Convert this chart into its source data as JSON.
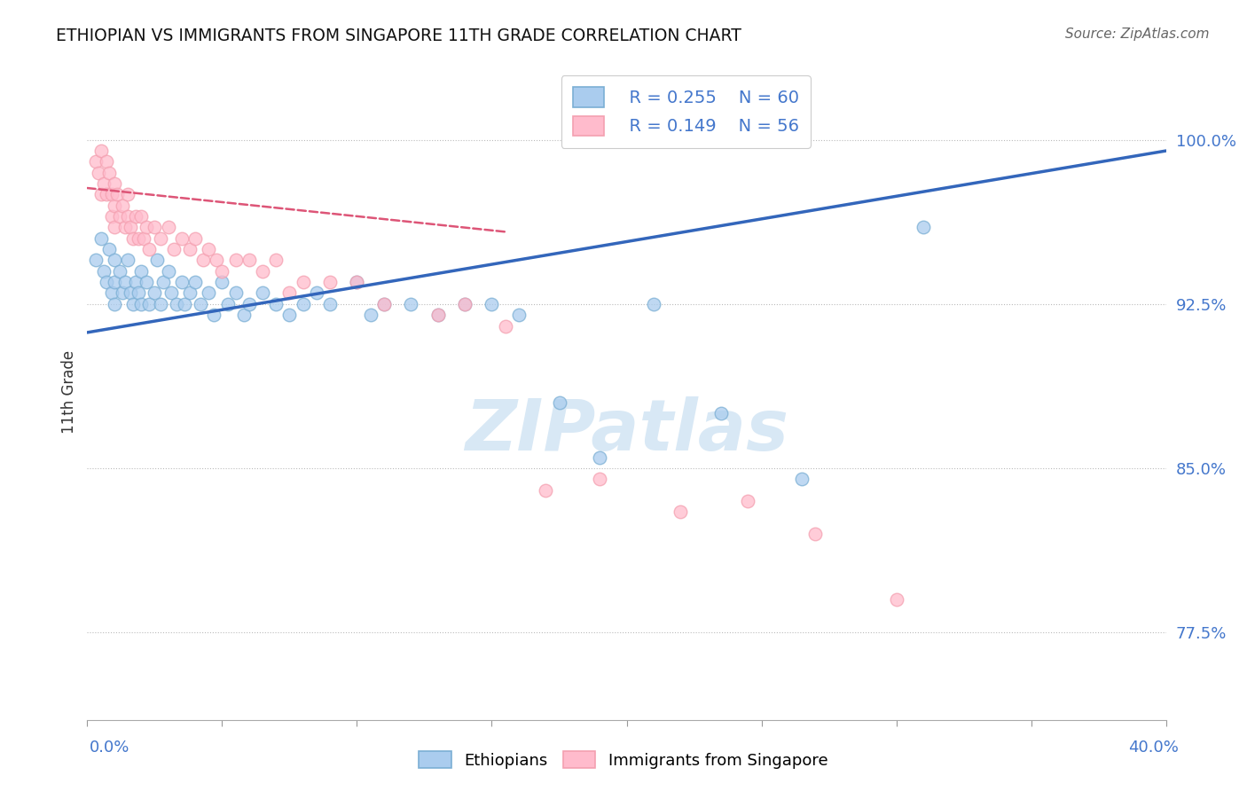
{
  "title": "ETHIOPIAN VS IMMIGRANTS FROM SINGAPORE 11TH GRADE CORRELATION CHART",
  "source": "Source: ZipAtlas.com",
  "ylabel": "11th Grade",
  "ytick_labels": [
    "77.5%",
    "85.0%",
    "92.5%",
    "100.0%"
  ],
  "ytick_values": [
    0.775,
    0.85,
    0.925,
    1.0
  ],
  "xmin": 0.0,
  "xmax": 0.4,
  "ymin": 0.735,
  "ymax": 1.035,
  "legend_r_blue": "R = 0.255",
  "legend_n_blue": "N = 60",
  "legend_r_pink": "R = 0.149",
  "legend_n_pink": "N = 56",
  "blue_color": "#7BAFD4",
  "pink_color": "#F4A0B0",
  "blue_fill": "#AACCEE",
  "pink_fill": "#FFBBCC",
  "trend_blue_color": "#3366BB",
  "trend_pink_color": "#DD5577",
  "watermark_color": "#D8E8F5",
  "blue_scatter_x": [
    0.003,
    0.005,
    0.006,
    0.007,
    0.008,
    0.009,
    0.01,
    0.01,
    0.01,
    0.012,
    0.013,
    0.014,
    0.015,
    0.016,
    0.017,
    0.018,
    0.019,
    0.02,
    0.02,
    0.022,
    0.023,
    0.025,
    0.026,
    0.027,
    0.028,
    0.03,
    0.031,
    0.033,
    0.035,
    0.036,
    0.038,
    0.04,
    0.042,
    0.045,
    0.047,
    0.05,
    0.052,
    0.055,
    0.058,
    0.06,
    0.065,
    0.07,
    0.075,
    0.08,
    0.085,
    0.09,
    0.1,
    0.105,
    0.11,
    0.12,
    0.13,
    0.14,
    0.15,
    0.16,
    0.175,
    0.19,
    0.21,
    0.235,
    0.265,
    0.31
  ],
  "blue_scatter_y": [
    0.945,
    0.955,
    0.94,
    0.935,
    0.95,
    0.93,
    0.945,
    0.935,
    0.925,
    0.94,
    0.93,
    0.935,
    0.945,
    0.93,
    0.925,
    0.935,
    0.93,
    0.94,
    0.925,
    0.935,
    0.925,
    0.93,
    0.945,
    0.925,
    0.935,
    0.94,
    0.93,
    0.925,
    0.935,
    0.925,
    0.93,
    0.935,
    0.925,
    0.93,
    0.92,
    0.935,
    0.925,
    0.93,
    0.92,
    0.925,
    0.93,
    0.925,
    0.92,
    0.925,
    0.93,
    0.925,
    0.935,
    0.92,
    0.925,
    0.925,
    0.92,
    0.925,
    0.925,
    0.92,
    0.88,
    0.855,
    0.925,
    0.875,
    0.845,
    0.96
  ],
  "pink_scatter_x": [
    0.003,
    0.004,
    0.005,
    0.005,
    0.006,
    0.007,
    0.007,
    0.008,
    0.009,
    0.009,
    0.01,
    0.01,
    0.01,
    0.011,
    0.012,
    0.013,
    0.014,
    0.015,
    0.015,
    0.016,
    0.017,
    0.018,
    0.019,
    0.02,
    0.021,
    0.022,
    0.023,
    0.025,
    0.027,
    0.03,
    0.032,
    0.035,
    0.038,
    0.04,
    0.043,
    0.045,
    0.048,
    0.05,
    0.055,
    0.06,
    0.065,
    0.07,
    0.075,
    0.08,
    0.09,
    0.1,
    0.11,
    0.13,
    0.14,
    0.155,
    0.17,
    0.19,
    0.22,
    0.245,
    0.27,
    0.3
  ],
  "pink_scatter_y": [
    0.99,
    0.985,
    0.995,
    0.975,
    0.98,
    0.99,
    0.975,
    0.985,
    0.975,
    0.965,
    0.98,
    0.97,
    0.96,
    0.975,
    0.965,
    0.97,
    0.96,
    0.975,
    0.965,
    0.96,
    0.955,
    0.965,
    0.955,
    0.965,
    0.955,
    0.96,
    0.95,
    0.96,
    0.955,
    0.96,
    0.95,
    0.955,
    0.95,
    0.955,
    0.945,
    0.95,
    0.945,
    0.94,
    0.945,
    0.945,
    0.94,
    0.945,
    0.93,
    0.935,
    0.935,
    0.935,
    0.925,
    0.92,
    0.925,
    0.915,
    0.84,
    0.845,
    0.83,
    0.835,
    0.82,
    0.79
  ],
  "blue_trend_x": [
    0.0,
    0.4
  ],
  "blue_trend_y": [
    0.912,
    0.995
  ],
  "pink_trend_x": [
    0.0,
    0.155
  ],
  "pink_trend_y": [
    0.978,
    0.958
  ]
}
